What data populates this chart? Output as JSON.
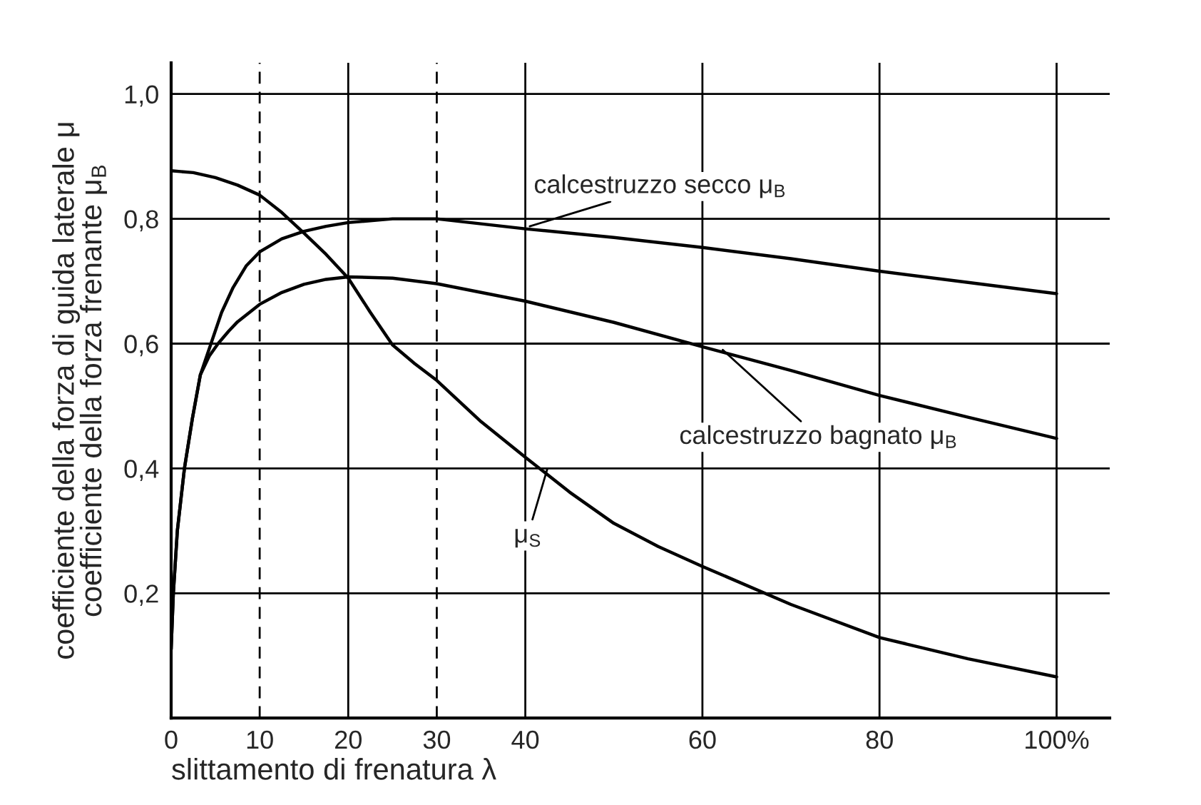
{
  "chart_data": {
    "type": "line",
    "xlabel": "slittamento di frenatura λ",
    "ylabel": "coefficiente della forza di guida laterale μ\ncoefficiente della forza frenante μ$_{B}$",
    "series": [
      {
        "color": "#000000",
        "x": [
          0,
          0.25,
          0.7,
          1.5,
          2.4,
          3.3,
          4.5,
          5.7,
          7,
          8.5,
          10,
          12.5,
          15,
          17.5,
          20,
          25,
          30,
          40,
          50,
          60,
          70,
          80,
          90,
          100
        ],
        "values": [
          0.11,
          0.2,
          0.3,
          0.4,
          0.48,
          0.55,
          0.6,
          0.65,
          0.69,
          0.725,
          0.747,
          0.768,
          0.78,
          0.788,
          0.794,
          0.8,
          0.8,
          0.784,
          0.77,
          0.754,
          0.736,
          0.716,
          0.698,
          0.68
        ]
      },
      {
        "color": "#000000",
        "x": [
          0,
          0.25,
          0.7,
          1.5,
          2.4,
          3.3,
          4.3,
          5.3,
          6.5,
          7.5,
          10,
          12.5,
          15,
          17.5,
          20,
          25,
          30,
          40,
          50,
          60,
          70,
          80,
          90,
          100
        ],
        "values": [
          0.11,
          0.2,
          0.3,
          0.4,
          0.48,
          0.55,
          0.58,
          0.6,
          0.62,
          0.635,
          0.663,
          0.682,
          0.695,
          0.703,
          0.707,
          0.705,
          0.696,
          0.668,
          0.634,
          0.595,
          0.557,
          0.517,
          0.482,
          0.448
        ]
      },
      {
        "color": "#000000",
        "x": [
          0,
          2.5,
          5,
          7.5,
          10,
          12.5,
          15,
          17.5,
          20,
          22.5,
          25,
          27.5,
          30,
          35,
          40,
          45,
          50,
          55,
          60,
          70,
          80,
          90,
          100
        ],
        "values": [
          0.877,
          0.874,
          0.866,
          0.854,
          0.838,
          0.81,
          0.777,
          0.743,
          0.705,
          0.65,
          0.598,
          0.568,
          0.541,
          0.475,
          0.418,
          0.362,
          0.312,
          0.275,
          0.243,
          0.182,
          0.129,
          0.095,
          0.066
        ]
      }
    ],
    "annotations": [
      {
        "text": "calcestruzzo secco μ$_{B}$",
        "x": 40.5,
        "y": 0.788
      },
      {
        "text": "calcestruzzo bagnato μ$_{B}$",
        "x": 62.3,
        "y": 0.59
      },
      {
        "text": "μ$_{S}$",
        "x": 42.5,
        "y": 0.4
      }
    ],
    "xlim": [
      0,
      106
    ],
    "ylim": [
      0,
      1.05
    ],
    "xticks": [
      0,
      10,
      20,
      30,
      40,
      60,
      80,
      {
        "value": 100,
        "label": "100%"
      }
    ],
    "yticks": [
      {
        "value": 0.2,
        "label": "0,2"
      },
      {
        "value": 0.4,
        "label": "0,4"
      },
      {
        "value": 0.6,
        "label": "0,6"
      },
      {
        "value": 0.8,
        "label": "0,8"
      },
      {
        "value": 1.0,
        "label": "1,0"
      }
    ],
    "grid": "y",
    "ref_lines": [
      {
        "axis": "x",
        "value": 10,
        "line_style": "dashed"
      },
      {
        "axis": "x",
        "value": 20,
        "line_style": "solid"
      },
      {
        "axis": "x",
        "value": 30,
        "line_style": "dashed"
      },
      {
        "axis": "x",
        "value": 40,
        "line_style": "solid"
      },
      {
        "axis": "x",
        "value": 60,
        "line_style": "solid"
      },
      {
        "axis": "x",
        "value": 80,
        "line_style": "solid"
      },
      {
        "axis": "x",
        "value": 100,
        "line_style": "solid"
      }
    ],
    "legend": false
  }
}
